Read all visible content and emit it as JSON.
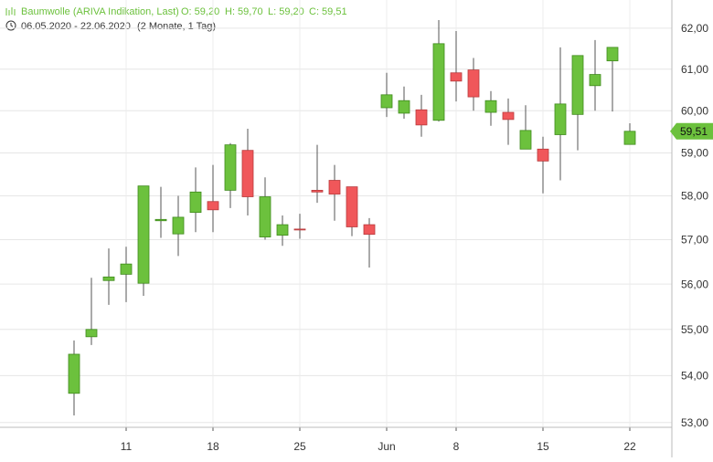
{
  "header": {
    "title": "Baumwolle (ARIVA Indikation, Last)",
    "open": "O: 59,20",
    "high": "H: 59,70",
    "low": "L: 59,20",
    "close": "C: 59,51",
    "range": "06.05.2020 - 22.06.2020",
    "period": "(2 Monate, 1 Tag)"
  },
  "chart_data": {
    "type": "candlestick",
    "log_scale": true,
    "grid": true,
    "up_color": "#6cc13d",
    "down_color": "#f0575a",
    "categories": [
      null,
      null,
      null,
      "11",
      null,
      null,
      null,
      null,
      "18",
      null,
      null,
      null,
      null,
      "25",
      null,
      null,
      null,
      null,
      "Jun",
      null,
      null,
      null,
      "8",
      null,
      null,
      null,
      null,
      "15",
      null,
      null,
      null,
      null,
      "22"
    ],
    "open": [
      53.62,
      54.84,
      56.08,
      56.22,
      56.02,
      57.43,
      57.13,
      57.62,
      57.87,
      58.13,
      59.06,
      57.06,
      57.1,
      57.24,
      58.13,
      58.36,
      58.21,
      57.34,
      60.07,
      59.94,
      60.02,
      59.77,
      60.91,
      60.98,
      59.96,
      59.96,
      59.09,
      59.09,
      59.43,
      59.91,
      60.6,
      61.2,
      59.2
    ],
    "high": [
      54.76,
      56.14,
      56.8,
      56.84,
      58.23,
      58.21,
      58.0,
      58.66,
      58.72,
      59.23,
      59.57,
      58.43,
      57.55,
      57.59,
      59.19,
      58.72,
      58.21,
      57.49,
      60.91,
      60.58,
      60.38,
      62.2,
      61.93,
      61.27,
      60.47,
      60.29,
      60.13,
      59.38,
      61.53,
      61.33,
      61.71,
      61.53,
      59.7
    ],
    "low": [
      53.15,
      54.66,
      55.54,
      55.6,
      55.74,
      57.04,
      56.63,
      57.17,
      57.17,
      57.72,
      57.55,
      57.0,
      56.86,
      57.02,
      57.84,
      57.43,
      57.08,
      56.37,
      59.85,
      59.81,
      59.38,
      59.74,
      60.22,
      60.0,
      59.64,
      59.19,
      59.09,
      58.06,
      58.36,
      59.06,
      60.0,
      59.98,
      59.2
    ],
    "close": [
      54.46,
      55.0,
      56.16,
      56.45,
      58.23,
      57.46,
      57.51,
      58.09,
      57.68,
      59.19,
      57.98,
      57.98,
      57.34,
      57.22,
      58.09,
      58.04,
      57.29,
      57.12,
      60.38,
      60.24,
      59.66,
      61.62,
      60.71,
      60.33,
      60.24,
      59.79,
      59.53,
      58.81,
      60.16,
      61.33,
      60.87,
      61.53,
      59.51
    ],
    "ylim": [
      52.9,
      62.7
    ],
    "yticks": [
      {
        "value": 53,
        "label": "53,00"
      },
      {
        "value": 54,
        "label": "54,00"
      },
      {
        "value": 55,
        "label": "55,00"
      },
      {
        "value": 56,
        "label": "56,00"
      },
      {
        "value": 57,
        "label": "57,00"
      },
      {
        "value": 58,
        "label": "58,00"
      },
      {
        "value": 59,
        "label": "59,00"
      },
      {
        "value": 60,
        "label": "60,00"
      },
      {
        "value": 61,
        "label": "61,00"
      },
      {
        "value": 62,
        "label": "62,00"
      }
    ],
    "last_price": {
      "value": 59.51,
      "label": "59,51"
    }
  }
}
